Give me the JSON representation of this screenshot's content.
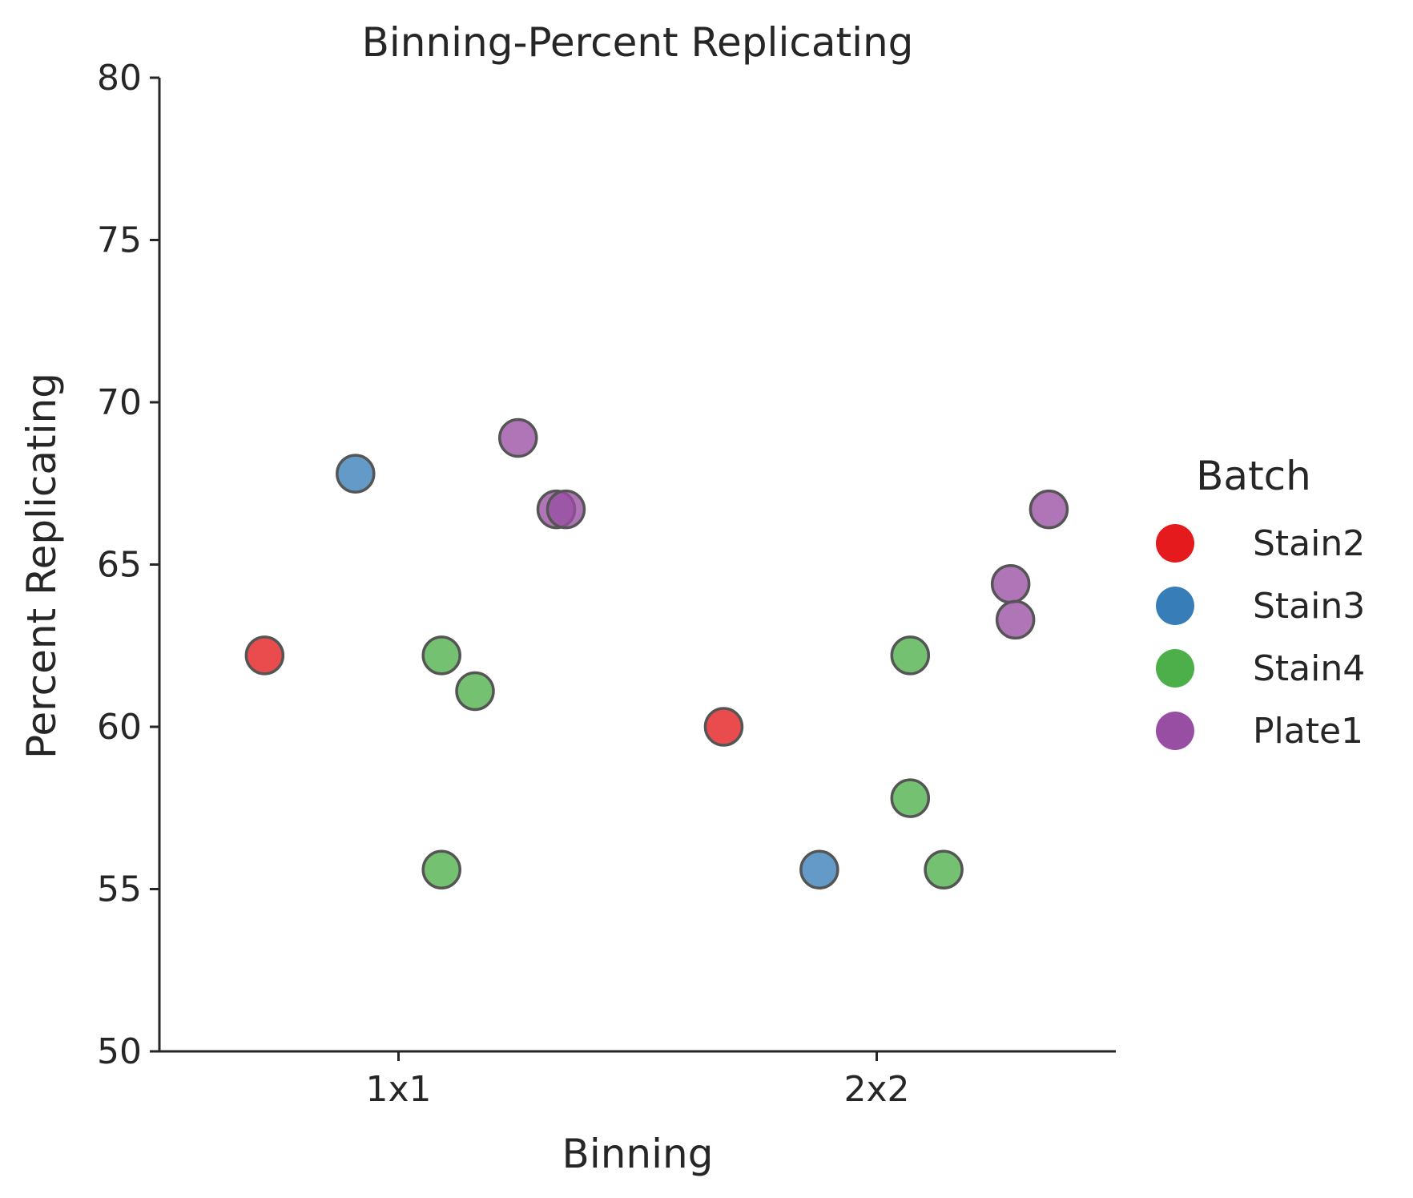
{
  "chart_data": {
    "type": "scatter",
    "title": "Binning-Percent Replicating",
    "xlabel": "Binning",
    "ylabel": "Percent Replicating",
    "categories": [
      "1x1",
      "2x2"
    ],
    "ylim": [
      50,
      80
    ],
    "yticks": [
      50,
      55,
      60,
      65,
      70,
      75,
      80
    ],
    "grid": false,
    "legend": {
      "title": "Batch",
      "placement": "right"
    },
    "series": [
      {
        "name": "Stain2",
        "color": "#e41a1c",
        "points": [
          {
            "category": "1x1",
            "jitter": -0.28,
            "y": 62.2
          },
          {
            "category": "2x2",
            "jitter": -0.32,
            "y": 60.0
          }
        ]
      },
      {
        "name": "Stain3",
        "color": "#377eb8",
        "points": [
          {
            "category": "1x1",
            "jitter": -0.09,
            "y": 67.8
          },
          {
            "category": "2x2",
            "jitter": -0.12,
            "y": 55.6
          }
        ]
      },
      {
        "name": "Stain4",
        "color": "#4daf4a",
        "points": [
          {
            "category": "1x1",
            "jitter": 0.09,
            "y": 62.2
          },
          {
            "category": "1x1",
            "jitter": 0.16,
            "y": 61.1
          },
          {
            "category": "1x1",
            "jitter": 0.09,
            "y": 55.6
          },
          {
            "category": "2x2",
            "jitter": 0.07,
            "y": 62.2
          },
          {
            "category": "2x2",
            "jitter": 0.07,
            "y": 57.8
          },
          {
            "category": "2x2",
            "jitter": 0.14,
            "y": 55.6
          }
        ]
      },
      {
        "name": "Plate1",
        "color": "#984ea3",
        "points": [
          {
            "category": "1x1",
            "jitter": 0.25,
            "y": 68.9
          },
          {
            "category": "1x1",
            "jitter": 0.33,
            "y": 66.7
          },
          {
            "category": "1x1",
            "jitter": 0.35,
            "y": 66.7
          },
          {
            "category": "2x2",
            "jitter": 0.36,
            "y": 66.7
          },
          {
            "category": "2x2",
            "jitter": 0.28,
            "y": 64.4
          },
          {
            "category": "2x2",
            "jitter": 0.29,
            "y": 63.3
          }
        ]
      }
    ]
  }
}
